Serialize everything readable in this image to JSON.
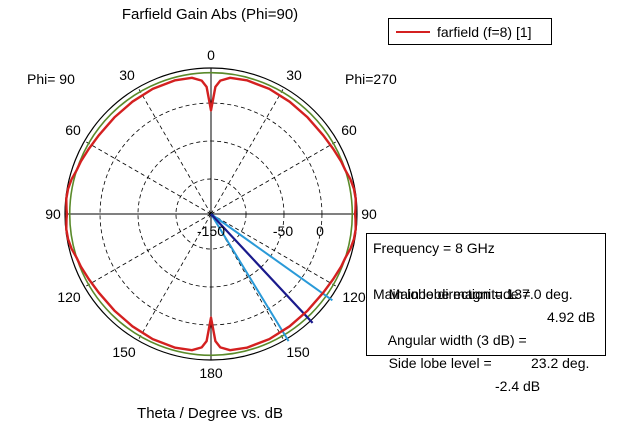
{
  "chart_data": {
    "type": "polar",
    "title": "Farfield Gain Abs (Phi=90)",
    "xlabel": "Theta / Degree vs. dB",
    "phi_left_label": "Phi= 90",
    "phi_right_label": "Phi=270",
    "angle_ticks": [
      "0",
      "30",
      "60",
      "90",
      "120",
      "150",
      "180",
      "150",
      "120",
      "90",
      "60",
      "30"
    ],
    "radial_ticks": [
      "-150",
      "-50",
      "0"
    ],
    "radial_range_db": [
      -150,
      5
    ],
    "colors": {
      "series": "#d42020",
      "reference": "#5a8a2a",
      "main_lobe": "#1a1a8c",
      "beamwidth": "#2a9ad8",
      "grid": "#000000"
    },
    "series": [
      {
        "name": "farfield (f=8) [1]",
        "theta_deg": [
          0,
          2,
          4,
          8,
          15,
          25,
          35,
          45,
          55,
          62,
          68,
          72,
          76,
          80,
          84,
          88,
          90,
          92,
          96,
          100,
          104,
          108,
          112,
          118,
          125,
          135,
          145,
          155,
          165,
          172,
          176,
          178,
          180
        ],
        "gain_db": [
          -40,
          -15,
          -8,
          -4,
          -3,
          -3.5,
          -4.5,
          -5,
          -4.5,
          -3,
          -1,
          0,
          2.5,
          4,
          4.5,
          3.5,
          3,
          3.5,
          4.5,
          4,
          2.5,
          0,
          -1,
          -3,
          -4.5,
          -5,
          -4.5,
          -3.5,
          -3,
          -4,
          -8,
          -15,
          -40
        ]
      }
    ],
    "reference_circle_db": 0,
    "main_lobe_direction_deg": 137.0,
    "angular_width_deg": 23.2,
    "legend": {
      "label": "farfield (f=8) [1]",
      "position": "top-right"
    },
    "info": {
      "frequency_label": "Frequency = 8 GHz",
      "magnitude_label": "Main lobe magnitude =",
      "magnitude_value": "4.92 dB",
      "direction_label": "Main lobe direction = 137.0 deg.",
      "width_label": "Angular width (3 dB) =",
      "width_value": "23.2 deg.",
      "sidelobe_label": "Side lobe level =",
      "sidelobe_value": "-2.4 dB"
    }
  }
}
